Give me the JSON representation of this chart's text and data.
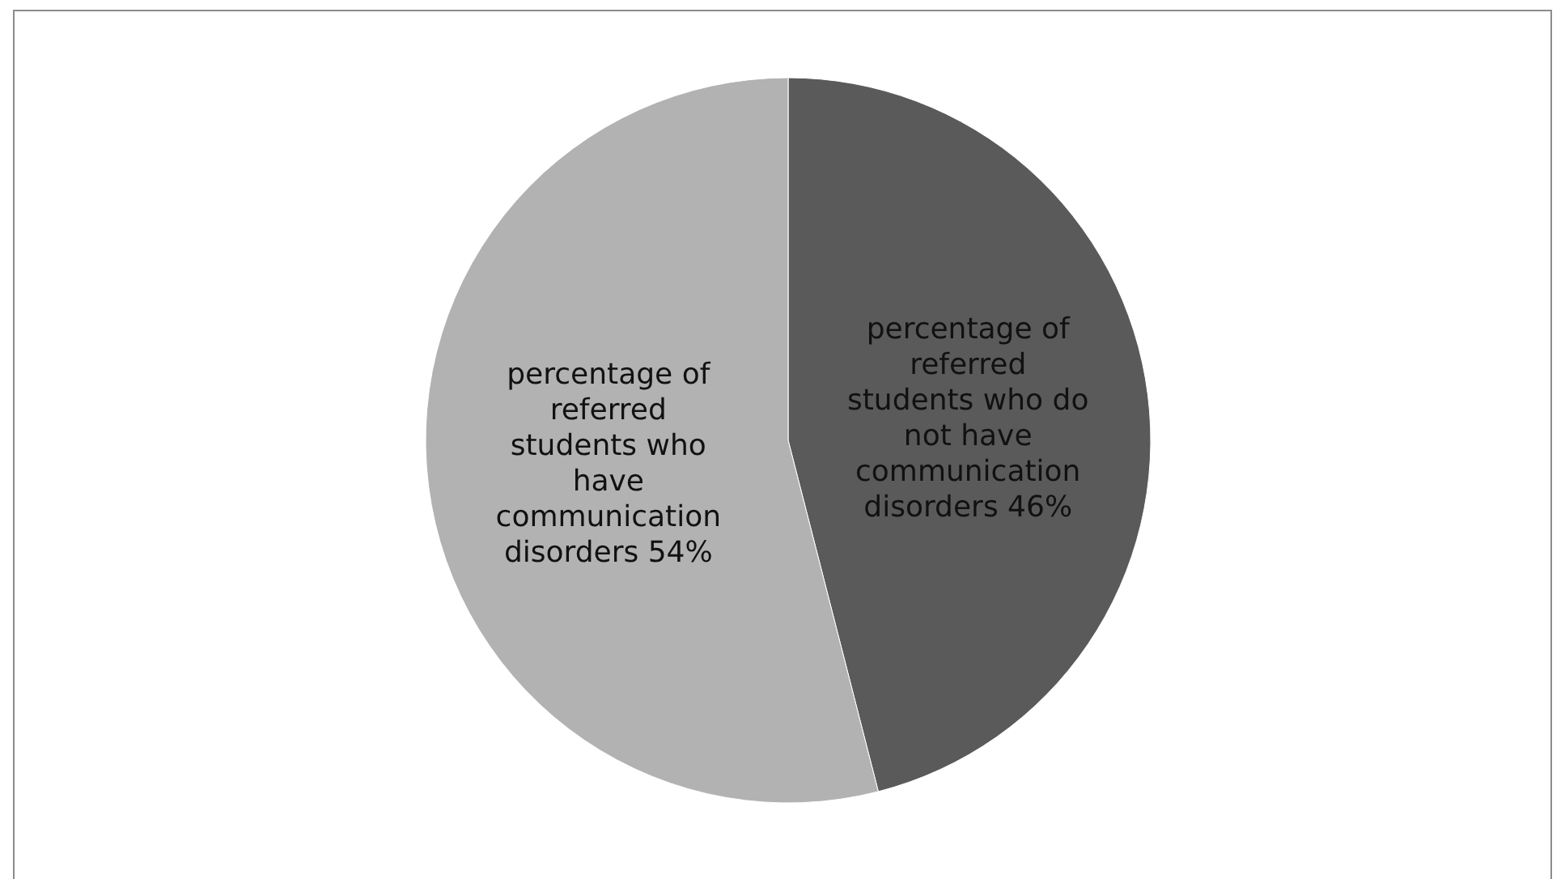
{
  "chart_data": {
    "type": "pie",
    "categories": [
      "percentage of referred students who do not have communication disorders",
      "percentage of referred students who have communication disorders"
    ],
    "values": [
      46,
      54
    ],
    "value_labels": [
      "46%",
      "54%"
    ],
    "colors": [
      "#5a5a5a",
      "#b2b2b2"
    ]
  }
}
